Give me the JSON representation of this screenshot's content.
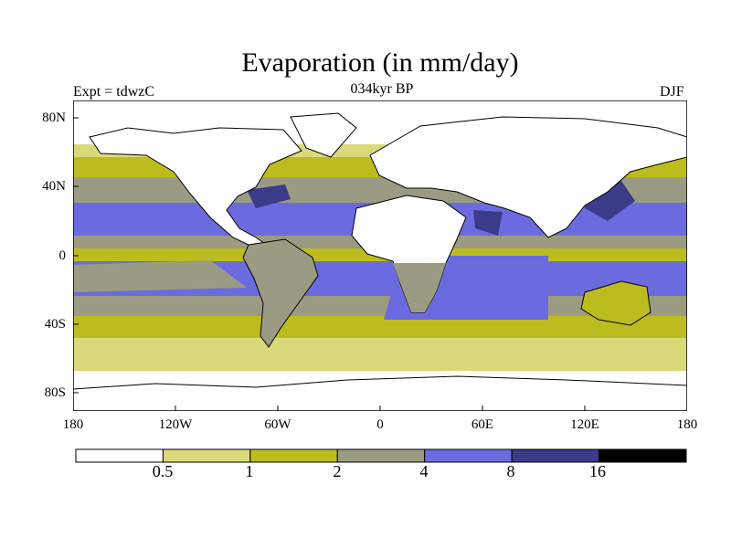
{
  "header": {
    "title": "Evaporation (in mm/day)",
    "experiment": "Expt = tdwzC",
    "period": "034kyr BP",
    "season": "DJF"
  },
  "axes": {
    "y_ticks": [
      "80N",
      "40N",
      "0",
      "40S",
      "80S"
    ],
    "x_ticks": [
      "180",
      "120W",
      "60W",
      "0",
      "60E",
      "120E",
      "180"
    ]
  },
  "colorbar": {
    "labels": [
      "0.5",
      "1",
      "2",
      "4",
      "8",
      "16"
    ],
    "colors": [
      "#ffffff",
      "#d9d97a",
      "#bcbc1e",
      "#9b9b83",
      "#6b6bdf",
      "#3b3b8a",
      "#000000"
    ]
  },
  "map_colors": {
    "ocean_white": "#ffffff",
    "light_yellow": "#d9d97a",
    "olive": "#bcbc1e",
    "gray": "#9b9b83",
    "blue": "#6b6bdf",
    "dark_blue": "#3b3b8a"
  }
}
